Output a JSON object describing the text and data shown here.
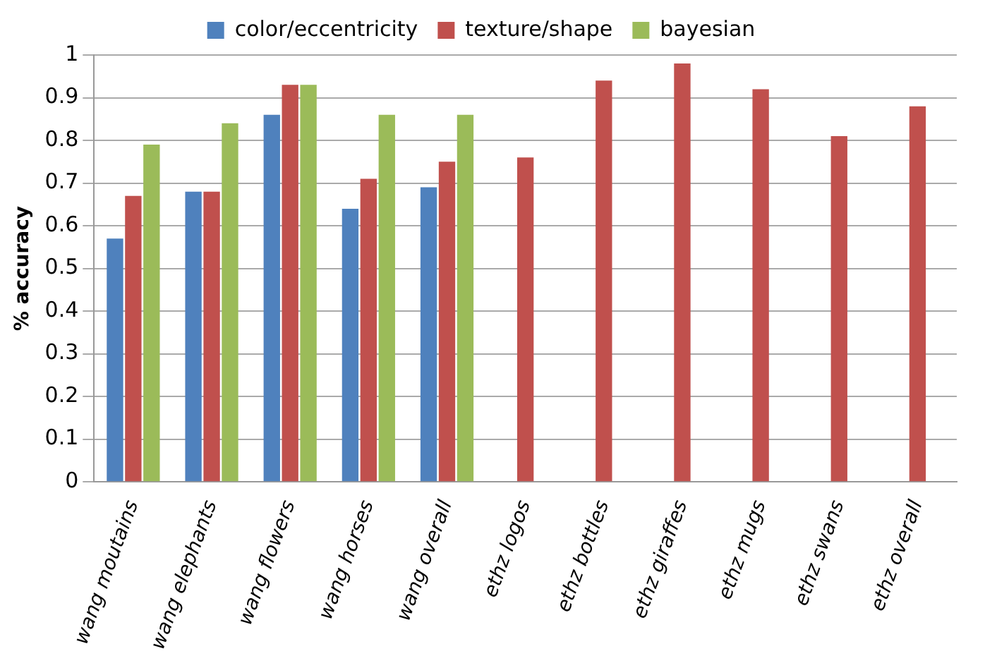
{
  "chart_data": {
    "type": "bar",
    "ylabel": "% accuracy",
    "categories": [
      "wang moutains",
      "wang elephants",
      "wang flowers",
      "wang horses",
      "wang overall",
      "ethz logos",
      "ethz bottles",
      "ethz giraffes",
      "ethz mugs",
      "ethz swans",
      "ethz overall"
    ],
    "series": [
      {
        "name": "color/eccentricity",
        "color": "#4f81bd",
        "values": [
          0.57,
          0.68,
          0.86,
          0.64,
          0.69,
          null,
          null,
          null,
          null,
          null,
          null
        ]
      },
      {
        "name": "texture/shape",
        "color": "#c0504d",
        "values": [
          0.67,
          0.68,
          0.93,
          0.71,
          0.75,
          0.76,
          0.94,
          0.98,
          0.92,
          0.81,
          0.88
        ]
      },
      {
        "name": "bayesian",
        "color": "#9bbb59",
        "values": [
          0.79,
          0.84,
          0.93,
          0.86,
          0.86,
          null,
          null,
          null,
          null,
          null,
          null
        ]
      }
    ],
    "ylim": [
      0,
      1
    ],
    "yticks": [
      0,
      0.1,
      0.2,
      0.3,
      0.4,
      0.5,
      0.6,
      0.7,
      0.8,
      0.9,
      1
    ],
    "grid": "y",
    "legend": "top"
  }
}
